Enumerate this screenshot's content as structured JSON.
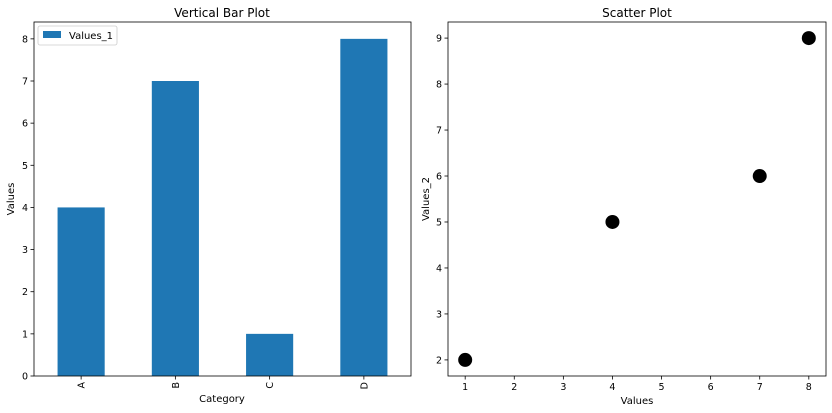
{
  "colors": {
    "bar": "#1f77b4",
    "scatter": "#000000",
    "axes": "#000000",
    "background": "#ffffff"
  },
  "chart_data": [
    {
      "type": "bar",
      "title": "Vertical Bar Plot",
      "xlabel": "Category",
      "ylabel": "Values",
      "categories": [
        "A",
        "B",
        "C",
        "D"
      ],
      "series": [
        {
          "name": "Values_1",
          "values": [
            4,
            7,
            1,
            8
          ]
        }
      ],
      "ylim": [
        0,
        8.4
      ],
      "yticks": [
        0,
        1,
        2,
        3,
        4,
        5,
        6,
        7,
        8
      ],
      "grid": false,
      "legend": "top-left",
      "xtick_rotation": 90
    },
    {
      "type": "scatter",
      "title": "Scatter Plot",
      "xlabel": "Values",
      "ylabel": "Values_2",
      "x": [
        1,
        4,
        7,
        8
      ],
      "y": [
        2,
        5,
        6,
        9
      ],
      "xlim": [
        0.65,
        8.35
      ],
      "ylim": [
        1.65,
        9.35
      ],
      "xticks": [
        1,
        2,
        3,
        4,
        5,
        6,
        7,
        8
      ],
      "yticks": [
        2,
        3,
        4,
        5,
        6,
        7,
        8,
        9
      ],
      "grid": false
    }
  ]
}
